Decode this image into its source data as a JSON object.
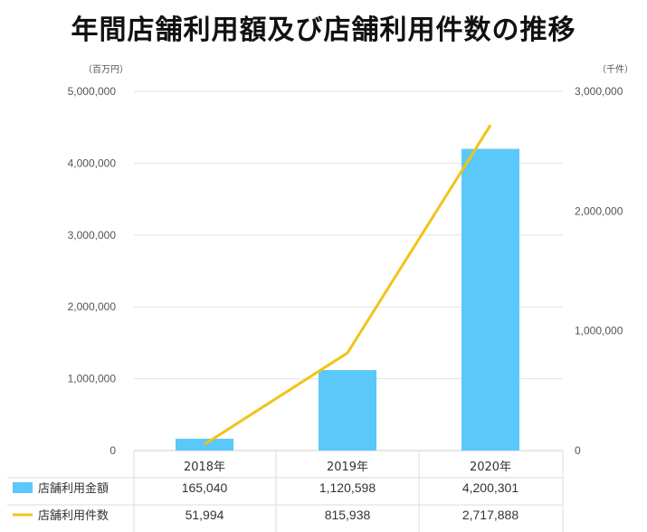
{
  "chart_data": {
    "type": "bar",
    "title": "年間店舗利用額及び店舗利用件数の推移",
    "left_axis_unit": "（百万円）",
    "right_axis_unit": "（千件）",
    "categories": [
      "2018年",
      "2019年",
      "2020年"
    ],
    "ylim_left": [
      0,
      5000000
    ],
    "ylim_right": [
      0,
      3000000
    ],
    "left_ticks": [
      "0",
      "1,000,000",
      "2,000,000",
      "3,000,000",
      "4,000,000",
      "5,000,000"
    ],
    "right_ticks": [
      "0",
      "1,000,000",
      "2,000,000",
      "3,000,000"
    ],
    "grid": true,
    "series": [
      {
        "name": "店舗利用金額",
        "type": "bar",
        "axis": "left",
        "color": "#5bc8fa",
        "values": [
          165040,
          1120598,
          4200301
        ],
        "labels": [
          "165,040",
          "1,120,598",
          "4,200,301"
        ]
      },
      {
        "name": "店舗利用件数",
        "type": "line",
        "axis": "right",
        "color": "#f0c419",
        "values": [
          51994,
          815938,
          2717888
        ],
        "labels": [
          "51,994",
          "815,938",
          "2,717,888"
        ]
      }
    ]
  }
}
